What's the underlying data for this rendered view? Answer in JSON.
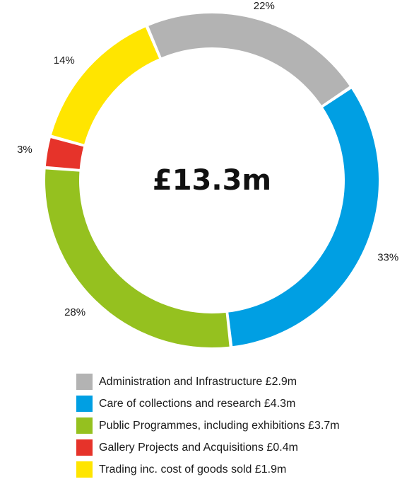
{
  "chart_data": {
    "type": "pie",
    "style": "donut",
    "center_label": "£13.3m",
    "slices": [
      {
        "label": "Administration and Infrastructure £2.9m",
        "value": 2.9,
        "percent_label": "22%",
        "color": "#b3b3b3"
      },
      {
        "label": "Care of collections and research £4.3m",
        "value": 4.3,
        "percent_label": "33%",
        "color": "#009fe3"
      },
      {
        "label": "Public Programmes, including exhibitions £3.7m",
        "value": 3.7,
        "percent_label": "28%",
        "color": "#95c11f"
      },
      {
        "label": "Gallery Projects and Acquisitions £0.4m",
        "value": 0.4,
        "percent_label": "3%",
        "color": "#e6332a"
      },
      {
        "label": "Trading inc. cost of goods sold £1.9m",
        "value": 1.9,
        "percent_label": "14%",
        "color": "#ffe500"
      }
    ],
    "legend_position": "bottom"
  }
}
